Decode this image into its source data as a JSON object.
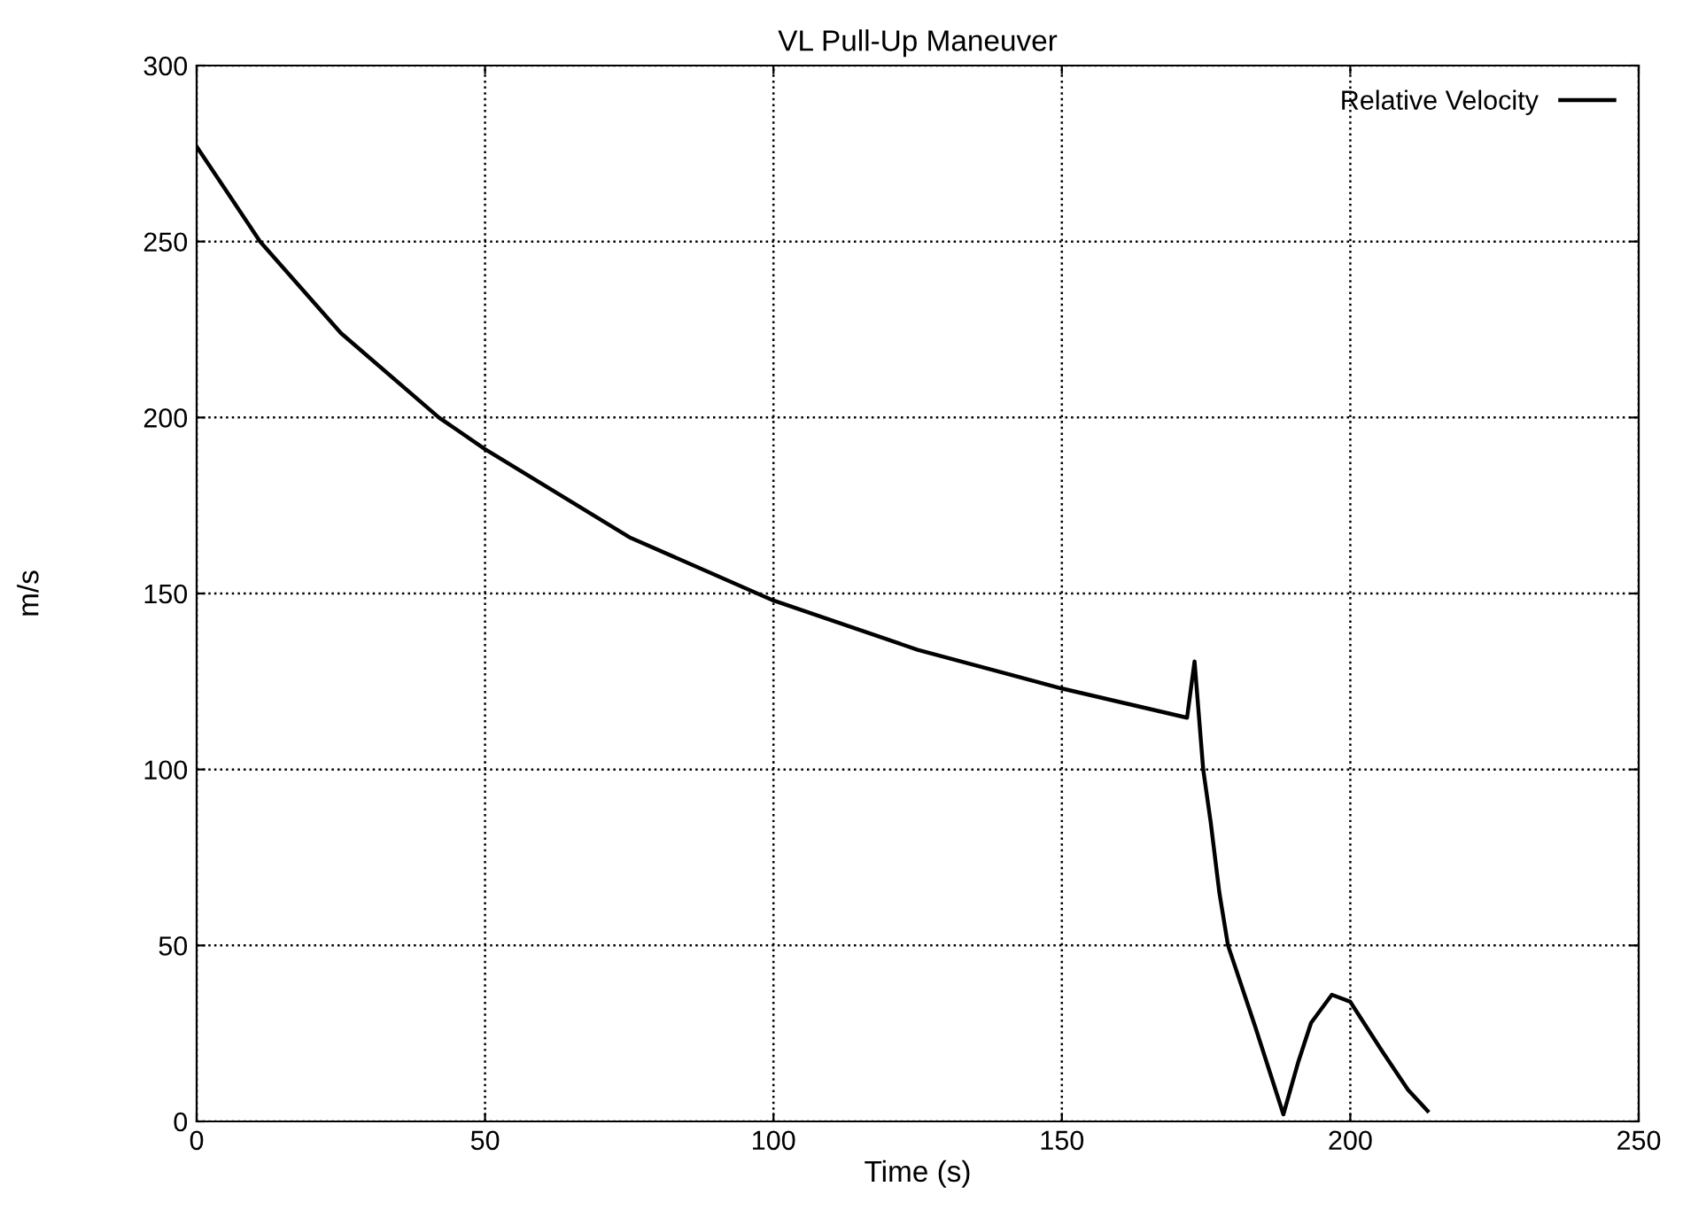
{
  "chart_data": {
    "type": "line",
    "title": "VL Pull-Up Maneuver",
    "xlabel": "Time (s)",
    "ylabel": "m/s",
    "series": [
      {
        "name": "Relative Velocity",
        "color": "#000000",
        "x": [
          0,
          11,
          25,
          42,
          50,
          75,
          100,
          125,
          150,
          171.7,
          173,
          174.5,
          175.8,
          177.3,
          178.8,
          183.5,
          188.4,
          191,
          193.2,
          196.8,
          200,
          205.5,
          210,
          213.4
        ],
        "values": [
          277,
          250,
          224,
          200,
          191,
          166,
          148,
          134,
          123,
          114.7,
          130.7,
          100,
          85,
          65,
          50,
          27,
          2,
          17,
          28,
          36,
          34,
          20,
          9,
          3
        ]
      }
    ],
    "xlim": [
      0,
      250
    ],
    "ylim": [
      0,
      300
    ],
    "xticks": [
      0,
      50,
      100,
      150,
      200,
      250
    ],
    "yticks": [
      0,
      50,
      100,
      150,
      200,
      250,
      300
    ],
    "grid": true,
    "legend": "top right",
    "marker": "none",
    "line_style": "solid"
  }
}
